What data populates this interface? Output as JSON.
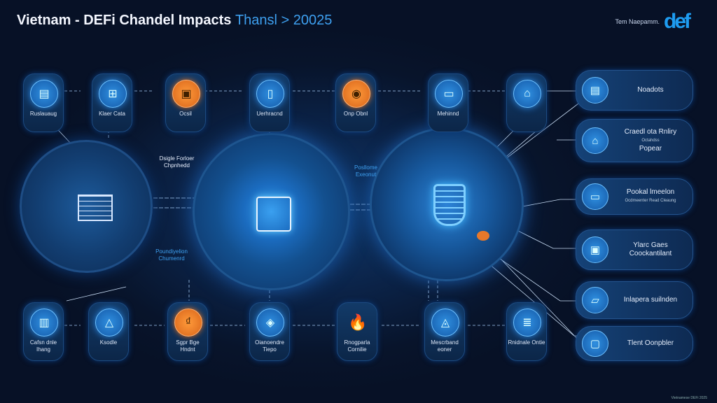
{
  "header": {
    "title": "Vietnam - DEFi Chandel Impacts",
    "title_suffix": "Thansl > 20025",
    "brand_text": "Tem Naepamm.",
    "brand_logo": "def"
  },
  "footer": "Vietnamese DEFi 2025",
  "top_row": [
    {
      "label": "Ruslauaug",
      "icon": "ledger-icon",
      "accent": "blue"
    },
    {
      "label": "Klaer Cata",
      "icon": "cart-icon",
      "accent": "blue"
    },
    {
      "label": "Ocsil",
      "icon": "wallet-icon",
      "accent": "orange"
    },
    {
      "label": "Uerhracnd",
      "icon": "bottle-icon",
      "accent": "blue"
    },
    {
      "label": "Onp Obnl",
      "icon": "coin-icon",
      "accent": "orange"
    },
    {
      "label": "Mehinnd",
      "icon": "phone-icon",
      "accent": "blue"
    },
    {
      "label": "",
      "icon": "factory-icon",
      "accent": "blue"
    }
  ],
  "bottom_row": [
    {
      "label": "Cafsn dnle Ihang",
      "icon": "device-icon",
      "accent": "blue"
    },
    {
      "label": "Ksodle",
      "icon": "hand-icon",
      "accent": "blue"
    },
    {
      "label": "Sgpr Bge Hndnt",
      "icon": "currency-icon",
      "accent": "orange"
    },
    {
      "label": "Oianoendre Tiepo",
      "icon": "map-icon",
      "accent": "blue"
    },
    {
      "label": "Rnogparla Cornilie",
      "icon": "flame-icon",
      "accent": "flame"
    },
    {
      "label": "Mescrband eoner",
      "icon": "chart-icon",
      "accent": "blue"
    },
    {
      "label": "Rnidnale Ontie",
      "icon": "server-icon",
      "accent": "blue"
    }
  ],
  "right_cards": [
    {
      "title": "Noadots",
      "subtitle": "",
      "icon": "document-icon"
    },
    {
      "title": "Craedl ota Rnliry",
      "subtitle": "Octahdss",
      "line2": "Popear",
      "icon": "bank-icon"
    },
    {
      "title": "Pookal lmeelon",
      "subtitle": "Ocdmeenter Read Cleaung",
      "icon": "card-icon"
    },
    {
      "title": "Ylarc Gaes",
      "subtitle": "",
      "line2": "Coockantilant",
      "icon": "monitor-icon"
    },
    {
      "title": "Inlapera suilnden",
      "subtitle": "",
      "icon": "tablet-icon"
    },
    {
      "title": "Tlent Oonpbler",
      "subtitle": "",
      "icon": "laptop-icon"
    }
  ],
  "annotations": {
    "left_top": "Dsigle Forloer Chpnhedd",
    "left_bottom": "Poundiyelion Chumenrd",
    "center_right": "Posllome Exeonut"
  },
  "hubs": [
    {
      "icon": "table-icon"
    },
    {
      "icon": "robot-icon"
    },
    {
      "icon": "lock-icon"
    }
  ],
  "colors": {
    "background": "#08142b",
    "accent": "#1e9cf0",
    "orange": "#e8782a"
  }
}
